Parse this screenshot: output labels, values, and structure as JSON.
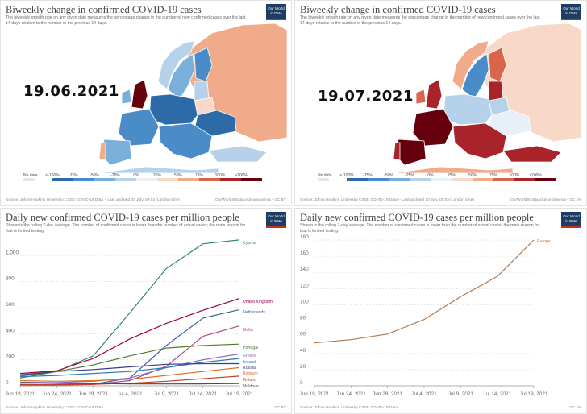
{
  "maps": [
    {
      "title": "Biweekly change in confirmed COVID-19 cases",
      "subtitle": "The biweekly growth rate on any given date measures the percentage change in the number of new confirmed cases over the last 14 days relative to the number in the previous 14 days.",
      "logo": "Our World in Data",
      "date_overlay": "19.06.2021",
      "footer_left": "Source: Johns Hopkins University CSSE COVID-19 Data – Last updated 20 July, 09:03 (London time)",
      "footer_right": "OurWorldInData.org/coronavirus • CC BY"
    },
    {
      "title": "Biweekly change in confirmed COVID-19 cases",
      "subtitle": "The biweekly growth rate on any given date measures the percentage change in the number of new confirmed cases over the last 14 days relative to the number in the previous 14 days.",
      "logo": "Our World in Data",
      "date_overlay": "19.07.2021",
      "footer_left": "Source: Johns Hopkins University CSSE COVID-19 Data – Last updated 20 July, 09:03 (London time)",
      "footer_right": "OurWorldInData.org/coronavirus • CC BY"
    }
  ],
  "map_legend": {
    "labels": [
      "No data",
      "<-100%",
      "-75%",
      "-50%",
      "-25%",
      "0%",
      "25%",
      "50%",
      "75%",
      "100%",
      ">200%"
    ],
    "colors": [
      "#2c6aa8",
      "#4a8cc8",
      "#7aafd9",
      "#b5d2ea",
      "#e8f0f7",
      "#f8d9c7",
      "#f0ab8a",
      "#d9654b",
      "#a8232a",
      "#67000d"
    ],
    "nodata_color": "#e6e6e6"
  },
  "line_panels": [
    {
      "title": "Daily new confirmed COVID-19 cases per million people",
      "subtitle": "Shown is the rolling 7-day average. The number of confirmed cases is lower than the number of actual cases; the main reason for that is limited testing.",
      "logo": "Our World in Data",
      "footer_left": "Source: Johns Hopkins University CSSE COVID-19 Data",
      "footer_right": "CC BY"
    },
    {
      "title": "Daily new confirmed COVID-19 cases per million people",
      "subtitle": "Shown is the rolling 7-day average. The number of confirmed cases is lower than the number of actual cases; the main reason for that is limited testing.",
      "logo": "Our World in Data",
      "footer_left": "Source: Johns Hopkins University CSSE COVID-19 Data",
      "footer_right": "CC BY"
    }
  ],
  "chart_data": [
    {
      "type": "line",
      "x": [
        "2021-06-19",
        "2021-06-24",
        "2021-06-29",
        "2021-07-04",
        "2021-07-09",
        "2021-07-14",
        "2021-07-19"
      ],
      "xticks": [
        "Jun 19, 2021",
        "Jun 24, 2021",
        "Jun 29, 2021",
        "Jul 4, 2021",
        "Jul 9, 2021",
        "Jul 14, 2021",
        "Jul 19, 2021"
      ],
      "ylim": [
        0,
        1150
      ],
      "yticks": [
        0,
        200,
        400,
        600,
        800,
        1000
      ],
      "grid": true,
      "series": [
        {
          "name": "Cyprus",
          "color": "#2e8b57",
          "values": [
            60,
            110,
            230,
            560,
            900,
            1090,
            1120
          ]
        },
        {
          "name": "United Kingdom",
          "color": "#a0004a",
          "values": [
            95,
            115,
            210,
            360,
            480,
            580,
            670
          ]
        },
        {
          "name": "Netherlands",
          "color": "#3a62a0",
          "values": [
            10,
            10,
            12,
            60,
            310,
            520,
            585
          ]
        },
        {
          "name": "Malta",
          "color": "#b04a8a",
          "values": [
            5,
            5,
            10,
            40,
            150,
            380,
            460
          ]
        },
        {
          "name": "Portugal",
          "color": "#4e7a2f",
          "values": [
            75,
            110,
            160,
            230,
            290,
            310,
            320
          ]
        },
        {
          "name": "Greece",
          "color": "#8a6abf",
          "values": [
            28,
            25,
            35,
            60,
            140,
            200,
            245
          ]
        },
        {
          "name": "Ireland",
          "color": "#2a7fae",
          "values": [
            70,
            80,
            95,
            110,
            140,
            180,
            210
          ]
        },
        {
          "name": "Russia",
          "color": "#3b3b8f",
          "values": [
            85,
            110,
            125,
            145,
            165,
            170,
            170
          ]
        },
        {
          "name": "Belgium",
          "color": "#d9722a",
          "values": [
            40,
            35,
            40,
            50,
            80,
            110,
            140
          ]
        },
        {
          "name": "Finland",
          "color": "#c04030",
          "values": [
            10,
            8,
            12,
            20,
            35,
            55,
            75
          ]
        },
        {
          "name": "Moldova",
          "color": "#2f5f3f",
          "values": [
            25,
            20,
            18,
            15,
            14,
            15,
            18
          ]
        }
      ]
    },
    {
      "type": "line",
      "x": [
        "2021-06-19",
        "2021-06-24",
        "2021-06-29",
        "2021-07-04",
        "2021-07-09",
        "2021-07-14",
        "2021-07-19"
      ],
      "xticks": [
        "Jun 19, 2021",
        "Jun 24, 2021",
        "Jun 29, 2021",
        "Jul 4, 2021",
        "Jul 9, 2021",
        "Jul 14, 2021",
        "Jul 19, 2021"
      ],
      "ylim": [
        0,
        185
      ],
      "yticks": [
        0,
        20,
        40,
        60,
        80,
        100,
        120,
        140,
        160,
        180
      ],
      "grid": true,
      "series": [
        {
          "name": "Europe",
          "color": "#b07a50",
          "values": [
            53,
            57,
            64,
            82,
            110,
            135,
            180
          ]
        }
      ]
    }
  ]
}
